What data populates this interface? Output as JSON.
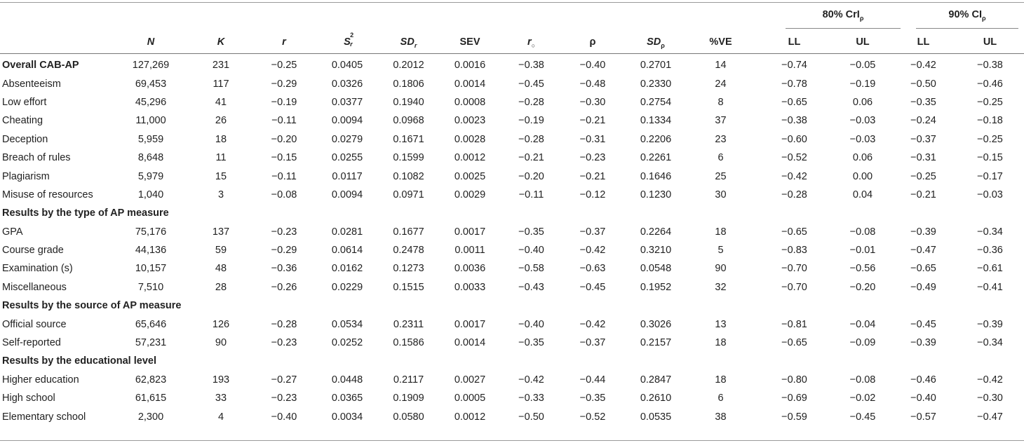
{
  "group_headers": {
    "credibility": {
      "main": "80% CrI",
      "sub": "ρ"
    },
    "confidence": {
      "main": "90% CI",
      "sub": "ρ"
    }
  },
  "columns": {
    "n": "N",
    "k": "K",
    "r": "r",
    "s2r": {
      "base": "S",
      "sup": "2",
      "sub": "r"
    },
    "sdr": {
      "base": "SD",
      "sub": "r"
    },
    "sev": "SEV",
    "ro": {
      "base": "r",
      "sub": "○"
    },
    "rho": "ρ",
    "sdrho": {
      "base": "SD",
      "sub": "ρ"
    },
    "ve": "%VE",
    "cr_ll": "LL",
    "cr_ul": "UL",
    "ci_ll": "LL",
    "ci_ul": "UL"
  },
  "rows": [
    {
      "type": "overall",
      "label": "Overall CAB-AP",
      "values": [
        "127,269",
        "231",
        "−0.25",
        "0.0405",
        "0.2012",
        "0.0016",
        "−0.38",
        "−0.40",
        "0.2701",
        "14",
        "−0.74",
        "−0.05",
        "−0.42",
        "−0.38"
      ]
    },
    {
      "type": "data",
      "label": "Absenteeism",
      "values": [
        "69,453",
        "117",
        "−0.29",
        "0.0326",
        "0.1806",
        "0.0014",
        "−0.45",
        "−0.48",
        "0.2330",
        "24",
        "−0.78",
        "−0.19",
        "−0.50",
        "−0.46"
      ]
    },
    {
      "type": "data",
      "label": "Low effort",
      "values": [
        "45,296",
        "41",
        "−0.19",
        "0.0377",
        "0.1940",
        "0.0008",
        "−0.28",
        "−0.30",
        "0.2754",
        "8",
        "−0.65",
        "0.06",
        "−0.35",
        "−0.25"
      ]
    },
    {
      "type": "data",
      "label": "Cheating",
      "values": [
        "11,000",
        "26",
        "−0.11",
        "0.0094",
        "0.0968",
        "0.0023",
        "−0.19",
        "−0.21",
        "0.1334",
        "37",
        "−0.38",
        "−0.03",
        "−0.24",
        "−0.18"
      ]
    },
    {
      "type": "data",
      "label": "Deception",
      "values": [
        "5,959",
        "18",
        "−0.20",
        "0.0279",
        "0.1671",
        "0.0028",
        "−0.28",
        "−0.31",
        "0.2206",
        "23",
        "−0.60",
        "−0.03",
        "−0.37",
        "−0.25"
      ]
    },
    {
      "type": "data",
      "label": "Breach of rules",
      "values": [
        "8,648",
        "11",
        "−0.15",
        "0.0255",
        "0.1599",
        "0.0012",
        "−0.21",
        "−0.23",
        "0.2261",
        "6",
        "−0.52",
        "0.06",
        "−0.31",
        "−0.15"
      ]
    },
    {
      "type": "data",
      "label": "Plagiarism",
      "values": [
        "5,979",
        "15",
        "−0.11",
        "0.0117",
        "0.1082",
        "0.0025",
        "−0.20",
        "−0.21",
        "0.1646",
        "25",
        "−0.42",
        "0.00",
        "−0.25",
        "−0.17"
      ]
    },
    {
      "type": "data",
      "label": "Misuse of resources",
      "values": [
        "1,040",
        "3",
        "−0.08",
        "0.0094",
        "0.0971",
        "0.0029",
        "−0.11",
        "−0.12",
        "0.1230",
        "30",
        "−0.28",
        "0.04",
        "−0.21",
        "−0.03"
      ]
    },
    {
      "type": "section",
      "label": "Results by the type of AP measure"
    },
    {
      "type": "data",
      "label": "GPA",
      "values": [
        "75,176",
        "137",
        "−0.23",
        "0.0281",
        "0.1677",
        "0.0017",
        "−0.35",
        "−0.37",
        "0.2264",
        "18",
        "−0.65",
        "−0.08",
        "−0.39",
        "−0.34"
      ]
    },
    {
      "type": "data",
      "label": "Course grade",
      "values": [
        "44,136",
        "59",
        "−0.29",
        "0.0614",
        "0.2478",
        "0.0011",
        "−0.40",
        "−0.42",
        "0.3210",
        "5",
        "−0.83",
        "−0.01",
        "−0.47",
        "−0.36"
      ]
    },
    {
      "type": "data",
      "label": "Examination (s)",
      "values": [
        "10,157",
        "48",
        "−0.36",
        "0.0162",
        "0.1273",
        "0.0036",
        "−0.58",
        "−0.63",
        "0.0548",
        "90",
        "−0.70",
        "−0.56",
        "−0.65",
        "−0.61"
      ]
    },
    {
      "type": "data",
      "label": "Miscellaneous",
      "values": [
        "7,510",
        "28",
        "−0.26",
        "0.0229",
        "0.1515",
        "0.0033",
        "−0.43",
        "−0.45",
        "0.1952",
        "32",
        "−0.70",
        "−0.20",
        "−0.49",
        "−0.41"
      ]
    },
    {
      "type": "section",
      "label": "Results by the source of AP measure"
    },
    {
      "type": "data",
      "label": "Official source",
      "values": [
        "65,646",
        "126",
        "−0.28",
        "0.0534",
        "0.2311",
        "0.0017",
        "−0.40",
        "−0.42",
        "0.3026",
        "13",
        "−0.81",
        "−0.04",
        "−0.45",
        "−0.39"
      ]
    },
    {
      "type": "data",
      "label": "Self-reported",
      "values": [
        "57,231",
        "90",
        "−0.23",
        "0.0252",
        "0.1586",
        "0.0014",
        "−0.35",
        "−0.37",
        "0.2157",
        "18",
        "−0.65",
        "−0.09",
        "−0.39",
        "−0.34"
      ]
    },
    {
      "type": "section",
      "label": "Results by the educational level"
    },
    {
      "type": "data",
      "label": "Higher education",
      "values": [
        "62,823",
        "193",
        "−0.27",
        "0.0448",
        "0.2117",
        "0.0027",
        "−0.42",
        "−0.44",
        "0.2847",
        "18",
        "−0.80",
        "−0.08",
        "−0.46",
        "−0.42"
      ]
    },
    {
      "type": "data",
      "label": "High school",
      "values": [
        "61,615",
        "33",
        "−0.23",
        "0.0365",
        "0.1909",
        "0.0005",
        "−0.33",
        "−0.35",
        "0.2610",
        "6",
        "−0.69",
        "−0.02",
        "−0.40",
        "−0.30"
      ]
    },
    {
      "type": "data",
      "label": "Elementary school",
      "values": [
        "2,300",
        "4",
        "−0.40",
        "0.0034",
        "0.0580",
        "0.0012",
        "−0.50",
        "−0.52",
        "0.0535",
        "38",
        "−0.59",
        "−0.45",
        "−0.57",
        "−0.47"
      ]
    }
  ]
}
